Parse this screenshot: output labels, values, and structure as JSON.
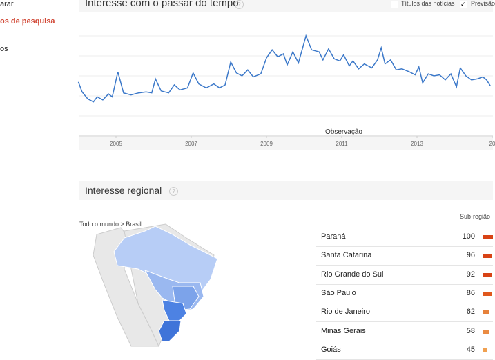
{
  "sidebar": {
    "items": [
      "arar",
      "os de pesquisa",
      "os"
    ]
  },
  "time_section": {
    "title": "Interesse com o passar do tempo",
    "help": "?",
    "checkboxes": [
      "Títulos das notícias",
      "Previsão"
    ]
  },
  "chart_data": {
    "type": "line",
    "annotation": "Observação",
    "xlim": [
      2004,
      2015
    ],
    "ylim": [
      0,
      100
    ],
    "xticks": [
      2005,
      2007,
      2009,
      2011,
      2013,
      {
        "value": 2015,
        "label": "20"
      }
    ],
    "grid": true,
    "series": [
      {
        "name": "Interesse",
        "color": "#3b78c9",
        "x": [
          2004.0,
          2004.1,
          2004.25,
          2004.4,
          2004.5,
          2004.65,
          2004.8,
          2004.9,
          2005.05,
          2005.2,
          2005.4,
          2005.6,
          2005.8,
          2005.95,
          2006.05,
          2006.2,
          2006.4,
          2006.55,
          2006.7,
          2006.9,
          2007.05,
          2007.2,
          2007.4,
          2007.6,
          2007.75,
          2007.9,
          2008.05,
          2008.2,
          2008.35,
          2008.5,
          2008.65,
          2008.85,
          2009.0,
          2009.15,
          2009.3,
          2009.45,
          2009.55,
          2009.7,
          2009.85,
          2010.05,
          2010.2,
          2010.4,
          2010.5,
          2010.65,
          2010.8,
          2010.95,
          2011.05,
          2011.2,
          2011.3,
          2011.45,
          2011.6,
          2011.8,
          2011.95,
          2012.05,
          2012.15,
          2012.3,
          2012.45,
          2012.6,
          2012.8,
          2012.95,
          2013.05,
          2013.15,
          2013.3,
          2013.45,
          2013.6,
          2013.75,
          2013.9,
          2014.05,
          2014.15,
          2014.3,
          2014.45,
          2014.6,
          2014.75,
          2014.85,
          2014.95
        ],
        "values": [
          54,
          44,
          37,
          34,
          39,
          36,
          42,
          39,
          64,
          43,
          41,
          43,
          44,
          43,
          57,
          45,
          43,
          51,
          46,
          48,
          63,
          52,
          48,
          52,
          48,
          51,
          74,
          63,
          60,
          66,
          59,
          62,
          78,
          86,
          79,
          82,
          71,
          84,
          73,
          100,
          86,
          84,
          76,
          87,
          77,
          75,
          81,
          70,
          75,
          67,
          72,
          68,
          76,
          88,
          72,
          76,
          66,
          67,
          64,
          61,
          69,
          53,
          62,
          60,
          61,
          56,
          62,
          49,
          68,
          60,
          56,
          57,
          59,
          56,
          50
        ]
      }
    ]
  },
  "regional": {
    "title": "Interesse regional",
    "help": "?",
    "breadcrumb": "Todo o mundo > Brasil",
    "column": "Sub-região",
    "rows": [
      {
        "name": "Paraná",
        "value": 100
      },
      {
        "name": "Santa Catarina",
        "value": 96
      },
      {
        "name": "Rio Grande do Sul",
        "value": 92
      },
      {
        "name": "São Paulo",
        "value": 86
      },
      {
        "name": "Rio de Janeiro",
        "value": 62
      },
      {
        "name": "Minas Gerais",
        "value": 58
      },
      {
        "name": "Goiás",
        "value": 45
      }
    ]
  }
}
